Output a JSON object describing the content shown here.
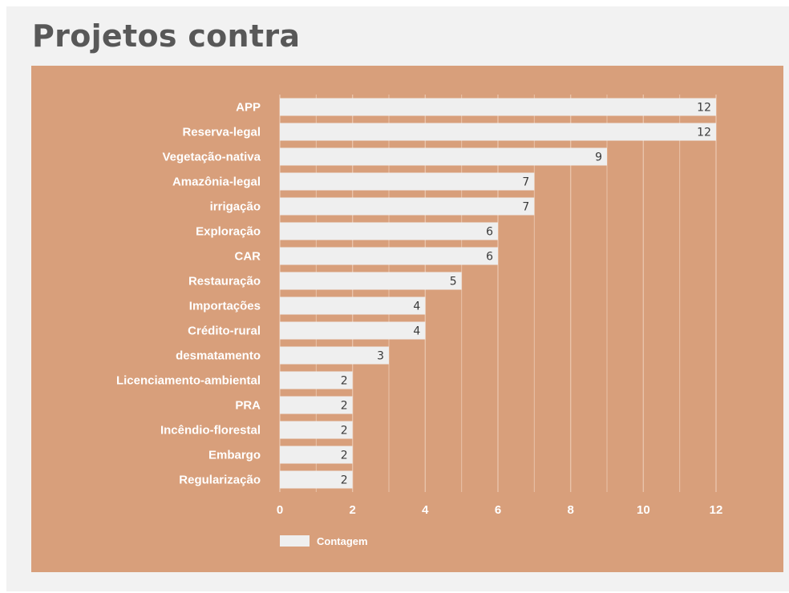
{
  "page": {
    "title": "Projetos contra"
  },
  "chart_data": {
    "type": "bar",
    "orientation": "horizontal",
    "categories": [
      "APP",
      "Reserva-legal",
      "Vegetação-nativa",
      "Amazônia-legal",
      "irrigação",
      "Exploração",
      "CAR",
      "Restauração",
      "Importações",
      "Crédito-rural",
      "desmatamento",
      "Licenciamento-ambiental",
      "PRA",
      "Incêndio-florestal",
      "Embargo",
      "Regularização"
    ],
    "series": [
      {
        "name": "Contagem",
        "values": [
          12,
          12,
          9,
          7,
          7,
          6,
          6,
          5,
          4,
          4,
          3,
          2,
          2,
          2,
          2,
          2
        ]
      }
    ],
    "xticks": [
      0,
      2,
      4,
      6,
      8,
      10,
      12
    ],
    "xlim": [
      0,
      12
    ],
    "grid": true,
    "legend_position": "bottom-left",
    "colors": {
      "bar": "#efefef",
      "background": "#d89f7b",
      "grid": "#e9c3aa"
    }
  }
}
